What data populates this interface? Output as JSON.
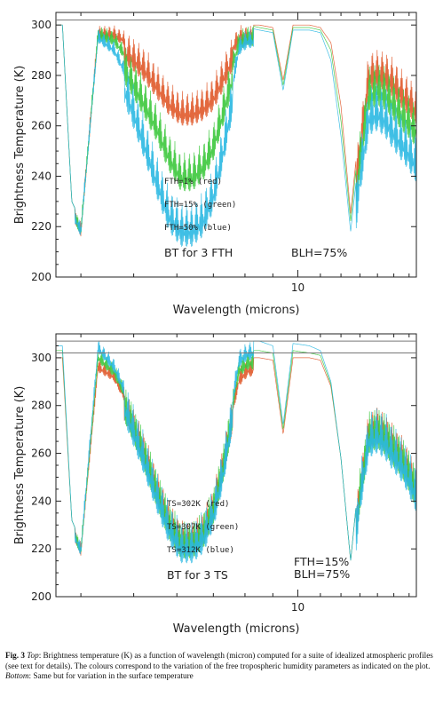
{
  "chart_data": [
    {
      "type": "line",
      "xlabel": "Wavelength (microns)",
      "ylabel": "Brightness Temperature (K)",
      "x_scale": "log",
      "xlim": [
        3.6,
        16.5
      ],
      "ylim": [
        200,
        305
      ],
      "x_ticks": [
        10
      ],
      "y_ticks": [
        200,
        220,
        240,
        260,
        280,
        300
      ],
      "reference_lines": [
        302
      ],
      "series": [
        {
          "name": "FTH=1% (red)",
          "color": "#e0592a",
          "x": [
            3.7,
            3.85,
            4.0,
            4.3,
            4.6,
            4.9,
            5.2,
            5.5,
            5.8,
            6.1,
            6.4,
            6.7,
            7.0,
            7.3,
            7.6,
            7.8,
            8.1,
            8.5,
            9.0,
            9.4,
            9.8,
            10.5,
            11.0,
            11.5,
            12.0,
            12.5,
            13.0,
            13.5,
            14.0,
            14.5,
            15.0,
            15.5,
            16.0,
            16.4
          ],
          "values": [
            300,
            230,
            222,
            300,
            300,
            297,
            292,
            285,
            278,
            274,
            274,
            276,
            280,
            288,
            296,
            300,
            300,
            300,
            299,
            278,
            300,
            300,
            299,
            293,
            268,
            225,
            262,
            290,
            291,
            290,
            287,
            283,
            280,
            277
          ]
        },
        {
          "name": "FTH=15% (green)",
          "color": "#3cc83c",
          "x": [
            3.7,
            3.85,
            4.0,
            4.3,
            4.6,
            4.9,
            5.2,
            5.5,
            5.8,
            6.1,
            6.4,
            6.7,
            7.0,
            7.3,
            7.6,
            7.8,
            8.1,
            8.5,
            9.0,
            9.4,
            9.8,
            10.5,
            11.0,
            11.5,
            12.0,
            12.5,
            13.0,
            13.5,
            14.0,
            14.5,
            15.0,
            15.5,
            16.0,
            16.4
          ],
          "values": [
            300,
            230,
            222,
            300,
            298,
            290,
            280,
            270,
            258,
            250,
            250,
            254,
            262,
            276,
            290,
            298,
            300,
            299,
            298,
            276,
            299,
            299,
            298,
            290,
            262,
            222,
            258,
            284,
            286,
            284,
            280,
            276,
            273,
            270
          ]
        },
        {
          "name": "FTH=50% (blue)",
          "color": "#2ab8e2",
          "x": [
            3.7,
            3.85,
            4.0,
            4.3,
            4.6,
            4.9,
            5.2,
            5.5,
            5.8,
            6.1,
            6.4,
            6.7,
            7.0,
            7.3,
            7.6,
            7.8,
            8.1,
            8.5,
            9.0,
            9.4,
            9.8,
            10.5,
            11.0,
            11.5,
            12.0,
            12.5,
            13.0,
            13.5,
            14.0,
            14.5,
            15.0,
            15.5,
            16.0,
            16.4
          ],
          "values": [
            300,
            230,
            222,
            299,
            294,
            282,
            266,
            250,
            236,
            230,
            230,
            234,
            244,
            262,
            282,
            296,
            299,
            298,
            297,
            274,
            298,
            298,
            297,
            286,
            256,
            218,
            252,
            276,
            278,
            275,
            270,
            266,
            262,
            258
          ]
        }
      ]
    },
    {
      "type": "line",
      "xlabel": "Wavelength (microns)",
      "ylabel": "Brightness Temperature (K)",
      "x_scale": "log",
      "xlim": [
        3.6,
        16.5
      ],
      "ylim": [
        200,
        310
      ],
      "x_ticks": [
        10
      ],
      "y_ticks": [
        200,
        220,
        240,
        260,
        280,
        300
      ],
      "reference_lines": [
        302,
        307
      ],
      "series": [
        {
          "name": "TS=302K (red)",
          "color": "#e0592a",
          "x": [
            3.7,
            3.85,
            4.0,
            4.3,
            4.6,
            4.9,
            5.2,
            5.5,
            5.8,
            6.1,
            6.4,
            6.7,
            7.0,
            7.3,
            7.6,
            7.8,
            8.1,
            8.5,
            9.0,
            9.4,
            9.8,
            10.5,
            11.0,
            11.5,
            12.0,
            12.5,
            13.0,
            13.5,
            14.0,
            14.5,
            15.0,
            15.5,
            16.0,
            16.4
          ],
          "values": [
            300,
            232,
            223,
            300,
            296,
            284,
            270,
            254,
            240,
            232,
            232,
            236,
            246,
            264,
            284,
            296,
            300,
            300,
            299,
            268,
            300,
            300,
            299,
            288,
            258,
            215,
            254,
            278,
            280,
            277,
            272,
            268,
            262,
            256
          ]
        },
        {
          "name": "TS=307K (green)",
          "color": "#3cc83c",
          "x": [
            3.7,
            3.85,
            4.0,
            4.3,
            4.6,
            4.9,
            5.2,
            5.5,
            5.8,
            6.1,
            6.4,
            6.7,
            7.0,
            7.3,
            7.6,
            7.8,
            8.1,
            8.5,
            9.0,
            9.4,
            9.8,
            10.5,
            11.0,
            11.5,
            12.0,
            12.5,
            13.0,
            13.5,
            14.0,
            14.5,
            15.0,
            15.5,
            16.0,
            16.4
          ],
          "values": [
            303,
            232,
            223,
            304,
            298,
            285,
            270,
            254,
            240,
            232,
            232,
            236,
            246,
            264,
            286,
            300,
            303,
            303,
            302,
            270,
            303,
            302,
            301,
            289,
            258,
            215,
            254,
            278,
            280,
            277,
            272,
            268,
            262,
            256
          ]
        },
        {
          "name": "TS=312K (blue)",
          "color": "#2ab8e2",
          "x": [
            3.7,
            3.85,
            4.0,
            4.3,
            4.6,
            4.9,
            5.2,
            5.5,
            5.8,
            6.1,
            6.4,
            6.7,
            7.0,
            7.3,
            7.6,
            7.8,
            8.1,
            8.5,
            9.0,
            9.4,
            9.8,
            10.5,
            11.0,
            11.5,
            12.0,
            12.5,
            13.0,
            13.5,
            14.0,
            14.5,
            15.0,
            15.5,
            16.0,
            16.4
          ],
          "values": [
            305,
            232,
            223,
            308,
            300,
            286,
            270,
            254,
            240,
            232,
            232,
            236,
            246,
            264,
            288,
            304,
            307,
            307,
            305,
            272,
            306,
            305,
            303,
            290,
            258,
            215,
            254,
            278,
            280,
            277,
            272,
            268,
            262,
            256
          ]
        }
      ]
    }
  ],
  "top_panel": {
    "legend": [
      "FTH=1% (red)",
      "FTH=15% (green)",
      "FTH=50% (blue)"
    ],
    "note_left": "BT for 3 FTH",
    "note_right": "BLH=75%"
  },
  "bottom_panel": {
    "legend": [
      "TS=302K (red)",
      "TS=307K (green)",
      "TS=312K (blue)"
    ],
    "note_left": "BT for 3 TS",
    "note_right_1": "FTH=15%",
    "note_right_2": "BLH=75%"
  },
  "caption": {
    "label": "Fig. 3",
    "top_word": "Top",
    "text_1": ": Brightness temperature (K) as a function of wavelength (micron) computed for a suite of idealized atmospheric profiles (see text for details). The colours correspond to the variation of the free tropospheric humidity parameters as indicated on the plot. ",
    "bottom_word": "Bottom",
    "text_2": ": Same but for variation in the surface temperature"
  },
  "colors": {
    "red": "#e0592a",
    "green": "#3cc83c",
    "blue": "#2ab8e2",
    "axis": "#222222",
    "reference": "#777777"
  }
}
